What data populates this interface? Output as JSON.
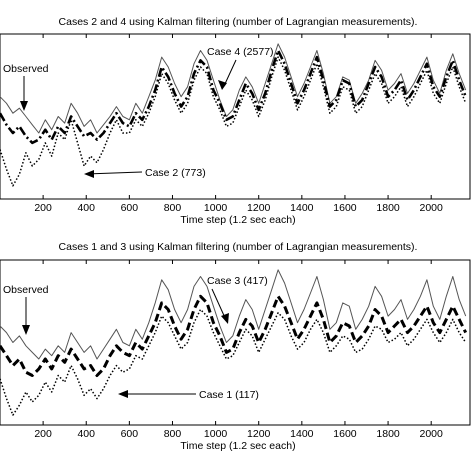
{
  "chart_data": [
    {
      "type": "line",
      "title": "Cases 2 and 4 using Kalman filtering (number of Lagrangian measurements).",
      "xlabel": "Time step (1.2 sec each)",
      "ylabel": "",
      "xlim": [
        0,
        2180
      ],
      "ylim": [
        0,
        1
      ],
      "xticks": [
        200,
        400,
        600,
        800,
        1000,
        1200,
        1400,
        1600,
        1800,
        2000
      ],
      "yticks_visible": false,
      "annotations": [
        "Observed",
        "Case 4 (2577)",
        "Case 2 (773)"
      ],
      "series": [
        {
          "name": "Observed",
          "style": "solid-thin",
          "color": "#555555",
          "x": [
            0,
            30,
            60,
            90,
            120,
            150,
            180,
            210,
            240,
            270,
            300,
            330,
            360,
            390,
            420,
            450,
            480,
            510,
            540,
            570,
            600,
            630,
            660,
            690,
            720,
            750,
            780,
            810,
            840,
            870,
            900,
            930,
            960,
            990,
            1020,
            1050,
            1080,
            1110,
            1140,
            1170,
            1200,
            1230,
            1260,
            1290,
            1320,
            1350,
            1380,
            1410,
            1440,
            1470,
            1500,
            1530,
            1560,
            1590,
            1620,
            1650,
            1680,
            1710,
            1740,
            1770,
            1800,
            1830,
            1860,
            1890,
            1920,
            1950,
            1980,
            2010,
            2040,
            2070,
            2100,
            2130,
            2160
          ],
          "values": [
            0.62,
            0.58,
            0.52,
            0.55,
            0.5,
            0.45,
            0.4,
            0.48,
            0.42,
            0.5,
            0.46,
            0.58,
            0.52,
            0.44,
            0.48,
            0.4,
            0.45,
            0.5,
            0.56,
            0.5,
            0.48,
            0.58,
            0.52,
            0.62,
            0.72,
            0.86,
            0.8,
            0.7,
            0.62,
            0.68,
            0.82,
            0.9,
            0.84,
            0.72,
            0.6,
            0.5,
            0.54,
            0.66,
            0.74,
            0.68,
            0.58,
            0.7,
            0.82,
            0.94,
            0.86,
            0.74,
            0.62,
            0.7,
            0.8,
            0.9,
            0.76,
            0.58,
            0.62,
            0.74,
            0.72,
            0.58,
            0.64,
            0.72,
            0.84,
            0.78,
            0.66,
            0.7,
            0.76,
            0.64,
            0.7,
            0.78,
            0.86,
            0.72,
            0.64,
            0.78,
            0.88,
            0.76,
            0.66
          ]
        },
        {
          "name": "Case 4 (2577)",
          "style": "dash-dot-thick",
          "color": "#000000",
          "x": [
            0,
            30,
            60,
            90,
            120,
            150,
            180,
            210,
            240,
            270,
            300,
            330,
            360,
            390,
            420,
            450,
            480,
            510,
            540,
            570,
            600,
            630,
            660,
            690,
            720,
            750,
            780,
            810,
            840,
            870,
            900,
            930,
            960,
            990,
            1020,
            1050,
            1080,
            1110,
            1140,
            1170,
            1200,
            1230,
            1260,
            1290,
            1320,
            1350,
            1380,
            1410,
            1440,
            1470,
            1500,
            1530,
            1560,
            1590,
            1620,
            1650,
            1680,
            1710,
            1740,
            1770,
            1800,
            1830,
            1860,
            1890,
            1920,
            1950,
            1980,
            2010,
            2040,
            2070,
            2100,
            2130,
            2160
          ],
          "values": [
            0.52,
            0.45,
            0.4,
            0.44,
            0.38,
            0.34,
            0.36,
            0.42,
            0.36,
            0.44,
            0.4,
            0.5,
            0.44,
            0.38,
            0.4,
            0.36,
            0.4,
            0.46,
            0.52,
            0.46,
            0.44,
            0.52,
            0.48,
            0.56,
            0.66,
            0.8,
            0.74,
            0.64,
            0.56,
            0.62,
            0.76,
            0.84,
            0.8,
            0.66,
            0.58,
            0.48,
            0.5,
            0.6,
            0.7,
            0.64,
            0.54,
            0.64,
            0.78,
            0.9,
            0.82,
            0.7,
            0.58,
            0.66,
            0.76,
            0.86,
            0.72,
            0.56,
            0.6,
            0.72,
            0.7,
            0.56,
            0.6,
            0.7,
            0.8,
            0.74,
            0.62,
            0.66,
            0.72,
            0.6,
            0.66,
            0.74,
            0.82,
            0.68,
            0.62,
            0.74,
            0.84,
            0.72,
            0.62
          ]
        },
        {
          "name": "Case 2 (773)",
          "style": "dotted",
          "color": "#000000",
          "x": [
            0,
            30,
            60,
            90,
            120,
            150,
            180,
            210,
            240,
            270,
            300,
            330,
            360,
            390,
            420,
            450,
            480,
            510,
            540,
            570,
            600,
            630,
            660,
            690,
            720,
            750,
            780,
            810,
            840,
            870,
            900,
            930,
            960,
            990,
            1020,
            1050,
            1080,
            1110,
            1140,
            1170,
            1200,
            1230,
            1260,
            1290,
            1320,
            1350,
            1380,
            1410,
            1440,
            1470,
            1500,
            1530,
            1560,
            1590,
            1620,
            1650,
            1680,
            1710,
            1740,
            1770,
            1800,
            1830,
            1860,
            1890,
            1920,
            1950,
            1980,
            2010,
            2040,
            2070,
            2100,
            2130,
            2160
          ],
          "values": [
            0.3,
            0.18,
            0.08,
            0.15,
            0.28,
            0.2,
            0.24,
            0.34,
            0.26,
            0.4,
            0.36,
            0.48,
            0.34,
            0.2,
            0.26,
            0.22,
            0.3,
            0.4,
            0.48,
            0.4,
            0.4,
            0.48,
            0.44,
            0.52,
            0.62,
            0.76,
            0.7,
            0.6,
            0.52,
            0.58,
            0.72,
            0.8,
            0.76,
            0.62,
            0.54,
            0.44,
            0.46,
            0.56,
            0.66,
            0.6,
            0.5,
            0.6,
            0.74,
            0.86,
            0.78,
            0.66,
            0.54,
            0.62,
            0.72,
            0.82,
            0.68,
            0.52,
            0.56,
            0.68,
            0.66,
            0.52,
            0.56,
            0.66,
            0.76,
            0.7,
            0.58,
            0.62,
            0.68,
            0.56,
            0.62,
            0.7,
            0.78,
            0.64,
            0.58,
            0.7,
            0.8,
            0.68,
            0.58
          ]
        }
      ]
    },
    {
      "type": "line",
      "title": "Cases 1 and 3 using Kalman filtering (number of Lagrangian measurements).",
      "xlabel": "Time step (1.2 sec each)",
      "ylabel": "",
      "xlim": [
        0,
        2180
      ],
      "ylim": [
        0,
        1
      ],
      "xticks": [
        200,
        400,
        600,
        800,
        1000,
        1200,
        1400,
        1600,
        1800,
        2000
      ],
      "yticks_visible": false,
      "annotations": [
        "Observed",
        "Case 3 (417)",
        "Case 1 (117)"
      ],
      "series": [
        {
          "name": "Observed",
          "style": "solid-thin",
          "color": "#555555",
          "x": [
            0,
            30,
            60,
            90,
            120,
            150,
            180,
            210,
            240,
            270,
            300,
            330,
            360,
            390,
            420,
            450,
            480,
            510,
            540,
            570,
            600,
            630,
            660,
            690,
            720,
            750,
            780,
            810,
            840,
            870,
            900,
            930,
            960,
            990,
            1020,
            1050,
            1080,
            1110,
            1140,
            1170,
            1200,
            1230,
            1260,
            1290,
            1320,
            1350,
            1380,
            1410,
            1440,
            1470,
            1500,
            1530,
            1560,
            1590,
            1620,
            1650,
            1680,
            1710,
            1740,
            1770,
            1800,
            1830,
            1860,
            1890,
            1920,
            1950,
            1980,
            2010,
            2040,
            2070,
            2100,
            2130,
            2160
          ],
          "values": [
            0.6,
            0.56,
            0.5,
            0.54,
            0.48,
            0.44,
            0.4,
            0.46,
            0.42,
            0.48,
            0.44,
            0.56,
            0.5,
            0.44,
            0.48,
            0.4,
            0.46,
            0.52,
            0.58,
            0.5,
            0.48,
            0.58,
            0.52,
            0.62,
            0.74,
            0.88,
            0.82,
            0.7,
            0.62,
            0.7,
            0.84,
            0.9,
            0.84,
            0.72,
            0.6,
            0.5,
            0.54,
            0.66,
            0.76,
            0.7,
            0.58,
            0.7,
            0.82,
            0.94,
            0.86,
            0.74,
            0.62,
            0.7,
            0.8,
            0.9,
            0.76,
            0.58,
            0.62,
            0.74,
            0.72,
            0.58,
            0.64,
            0.72,
            0.84,
            0.78,
            0.66,
            0.7,
            0.76,
            0.64,
            0.7,
            0.78,
            0.88,
            0.72,
            0.64,
            0.78,
            0.9,
            0.76,
            0.66
          ]
        },
        {
          "name": "Case 3 (417)",
          "style": "dash-thick",
          "color": "#000000",
          "x": [
            0,
            30,
            60,
            90,
            120,
            150,
            180,
            210,
            240,
            270,
            300,
            330,
            360,
            390,
            420,
            450,
            480,
            510,
            540,
            570,
            600,
            630,
            660,
            690,
            720,
            750,
            780,
            810,
            840,
            870,
            900,
            930,
            960,
            990,
            1020,
            1050,
            1080,
            1110,
            1140,
            1170,
            1200,
            1230,
            1260,
            1290,
            1320,
            1350,
            1380,
            1410,
            1440,
            1470,
            1500,
            1530,
            1560,
            1590,
            1620,
            1650,
            1680,
            1710,
            1740,
            1770,
            1800,
            1830,
            1860,
            1890,
            1920,
            1950,
            1980,
            2010,
            2040,
            2070,
            2100,
            2130,
            2160
          ],
          "values": [
            0.48,
            0.42,
            0.36,
            0.4,
            0.32,
            0.3,
            0.34,
            0.4,
            0.34,
            0.42,
            0.38,
            0.46,
            0.4,
            0.34,
            0.36,
            0.3,
            0.34,
            0.42,
            0.48,
            0.44,
            0.42,
            0.5,
            0.46,
            0.54,
            0.62,
            0.74,
            0.7,
            0.6,
            0.52,
            0.58,
            0.7,
            0.78,
            0.74,
            0.62,
            0.54,
            0.44,
            0.46,
            0.56,
            0.64,
            0.6,
            0.5,
            0.58,
            0.68,
            0.78,
            0.72,
            0.62,
            0.52,
            0.58,
            0.66,
            0.74,
            0.64,
            0.5,
            0.54,
            0.62,
            0.6,
            0.5,
            0.54,
            0.6,
            0.7,
            0.66,
            0.56,
            0.6,
            0.64,
            0.56,
            0.6,
            0.66,
            0.72,
            0.62,
            0.56,
            0.64,
            0.72,
            0.64,
            0.56
          ]
        },
        {
          "name": "Case 1 (117)",
          "style": "dotted",
          "color": "#000000",
          "x": [
            0,
            30,
            60,
            90,
            120,
            150,
            180,
            210,
            240,
            270,
            300,
            330,
            360,
            390,
            420,
            450,
            480,
            510,
            540,
            570,
            600,
            630,
            660,
            690,
            720,
            750,
            780,
            810,
            840,
            870,
            900,
            930,
            960,
            990,
            1020,
            1050,
            1080,
            1110,
            1140,
            1170,
            1200,
            1230,
            1260,
            1290,
            1320,
            1350,
            1380,
            1410,
            1440,
            1470,
            1500,
            1530,
            1560,
            1590,
            1620,
            1650,
            1680,
            1710,
            1740,
            1770,
            1800,
            1830,
            1860,
            1890,
            1920,
            1950,
            1980,
            2010,
            2040,
            2070,
            2100,
            2130,
            2160
          ],
          "values": [
            0.28,
            0.16,
            0.06,
            0.12,
            0.2,
            0.14,
            0.18,
            0.26,
            0.2,
            0.3,
            0.26,
            0.36,
            0.28,
            0.18,
            0.22,
            0.16,
            0.22,
            0.3,
            0.36,
            0.32,
            0.34,
            0.42,
            0.4,
            0.48,
            0.56,
            0.66,
            0.62,
            0.54,
            0.46,
            0.5,
            0.62,
            0.7,
            0.66,
            0.56,
            0.48,
            0.4,
            0.42,
            0.5,
            0.58,
            0.54,
            0.44,
            0.52,
            0.6,
            0.68,
            0.64,
            0.54,
            0.46,
            0.5,
            0.58,
            0.64,
            0.56,
            0.44,
            0.48,
            0.54,
            0.52,
            0.44,
            0.46,
            0.52,
            0.6,
            0.58,
            0.5,
            0.52,
            0.56,
            0.48,
            0.52,
            0.58,
            0.64,
            0.56,
            0.5,
            0.56,
            0.64,
            0.56,
            0.5
          ]
        }
      ]
    }
  ]
}
